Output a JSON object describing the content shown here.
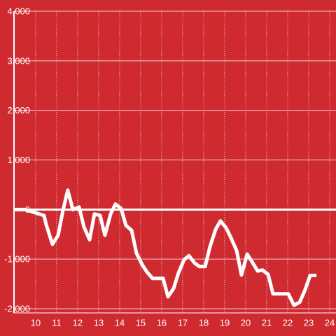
{
  "chart_data": {
    "type": "line",
    "x": [
      9.0,
      9.5,
      10.4,
      10.5,
      10.8,
      11.07,
      11.3,
      11.53,
      11.77,
      12.07,
      12.3,
      12.57,
      12.8,
      13.07,
      13.3,
      13.57,
      13.8,
      14.07,
      14.3,
      14.57,
      14.8,
      15.07,
      15.3,
      15.57,
      16.07,
      16.3,
      16.57,
      16.8,
      17.07,
      17.3,
      17.57,
      17.8,
      18.07,
      18.3,
      18.57,
      18.8,
      19.07,
      19.3,
      19.57,
      19.8,
      20.07,
      20.3,
      20.57,
      20.8,
      21.07,
      21.3,
      22.03,
      22.3,
      22.57,
      22.8,
      23.07,
      23.37
    ],
    "series": [
      {
        "color": "#ffffff",
        "values": [
          0,
          0,
          -120,
          -300,
          -700,
          -520,
          -20,
          390,
          0,
          50,
          -350,
          -610,
          -90,
          -120,
          -520,
          -90,
          110,
          20,
          -320,
          -420,
          -880,
          -1110,
          -1260,
          -1390,
          -1390,
          -1760,
          -1590,
          -1280,
          -1010,
          -930,
          -1080,
          -1150,
          -1150,
          -750,
          -400,
          -230,
          -370,
          -570,
          -830,
          -1320,
          -900,
          -1050,
          -1240,
          -1220,
          -1310,
          -1700,
          -1700,
          -1930,
          -1870,
          -1650,
          -1330,
          -1330
        ]
      }
    ],
    "xlim": [
      8.97,
      24.3
    ],
    "xticks": [
      10,
      11,
      12,
      13,
      14,
      15,
      16,
      17,
      18,
      19,
      20,
      21,
      22,
      23,
      24
    ],
    "ylim": [
      -2000,
      4000
    ],
    "yticks": [
      {
        "value": -2000,
        "label": "-2,000"
      },
      {
        "value": -1000,
        "label": "-1,000"
      },
      0,
      {
        "value": 1000,
        "label": "1,000"
      },
      {
        "value": 2000,
        "label": "2,000"
      },
      {
        "value": 3000,
        "label": "3,000"
      },
      {
        "value": 4000,
        "label": "4,000"
      }
    ],
    "grid": true
  }
}
